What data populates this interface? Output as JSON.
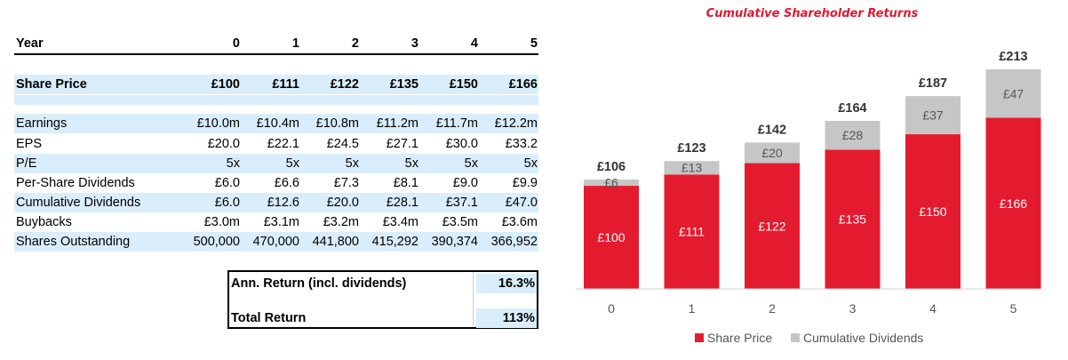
{
  "table": {
    "year_label": "Year",
    "years": [
      "0",
      "1",
      "2",
      "3",
      "4",
      "5"
    ],
    "share_price": {
      "label": "Share Price",
      "values": [
        "£100",
        "£111",
        "£122",
        "£135",
        "£150",
        "£166"
      ]
    },
    "rows": [
      {
        "label": "Earnings",
        "values": [
          "£10.0m",
          "£10.4m",
          "£10.8m",
          "£11.2m",
          "£11.7m",
          "£12.2m"
        ]
      },
      {
        "label": "EPS",
        "values": [
          "£20.0",
          "£22.1",
          "£24.5",
          "£27.1",
          "£30.0",
          "£33.2"
        ]
      },
      {
        "label": "P/E",
        "values": [
          "5x",
          "5x",
          "5x",
          "5x",
          "5x",
          "5x"
        ]
      },
      {
        "label": "Per-Share Dividends",
        "values": [
          "£6.0",
          "£6.6",
          "£7.3",
          "£8.1",
          "£9.0",
          "£9.9"
        ]
      },
      {
        "label": "Cumulative Dividends",
        "values": [
          "£6.0",
          "£12.6",
          "£20.0",
          "£28.1",
          "£37.1",
          "£47.0"
        ]
      },
      {
        "label": "Buybacks",
        "values": [
          "£3.0m",
          "£3.1m",
          "£3.2m",
          "£3.4m",
          "£3.5m",
          "£3.6m"
        ]
      },
      {
        "label": "Shares Outstanding",
        "values": [
          "500,000",
          "470,000",
          "441,800",
          "415,292",
          "390,374",
          "366,952"
        ]
      }
    ]
  },
  "returns": {
    "annual_label": "Ann. Return (incl. dividends)",
    "annual_value": "16.3%",
    "total_label": "Total Return",
    "total_value": "113%"
  },
  "chart_data": {
    "type": "bar",
    "stacked": true,
    "title": "Cumulative Shareholder Returns",
    "categories": [
      "0",
      "1",
      "2",
      "3",
      "4",
      "5"
    ],
    "series": [
      {
        "name": "Share Price",
        "color": "#e41b2e",
        "values": [
          100,
          111,
          122,
          135,
          150,
          166
        ],
        "labels": [
          "£100",
          "£111",
          "£122",
          "£135",
          "£150",
          "£166"
        ]
      },
      {
        "name": "Cumulative Dividends",
        "color": "#c6c6c6",
        "values": [
          6,
          13,
          20,
          28,
          37,
          47
        ],
        "labels": [
          "£6",
          "£13",
          "£20",
          "£28",
          "£37",
          "£47"
        ]
      }
    ],
    "totals": [
      "£106",
      "£123",
      "£142",
      "£164",
      "£187",
      "£213"
    ],
    "ylim": [
      0,
      213
    ],
    "grid": false,
    "legend": "bottom"
  }
}
